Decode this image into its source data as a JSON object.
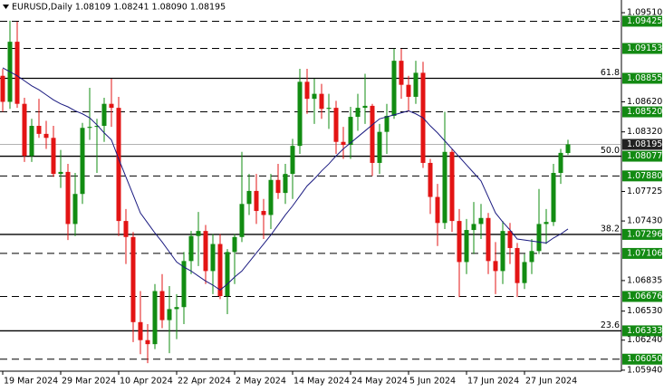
{
  "chart_data": {
    "type": "candlestick",
    "title": "EURUSD,Daily  1.08109 1.08241 1.08090 1.08195",
    "categories": [
      "19 Mar 2024",
      null,
      null,
      null,
      null,
      null,
      null,
      null,
      "29 Mar 2024",
      null,
      null,
      null,
      null,
      null,
      null,
      null,
      "10 Apr 2024",
      null,
      null,
      null,
      null,
      null,
      null,
      null,
      "22 Apr 2024",
      null,
      null,
      null,
      null,
      null,
      null,
      null,
      "2 May 2024",
      null,
      null,
      null,
      null,
      null,
      null,
      null,
      "14 May 2024",
      null,
      null,
      null,
      null,
      null,
      null,
      null,
      "24 May 2024",
      null,
      null,
      null,
      null,
      null,
      null,
      null,
      "5 Jun 2024",
      null,
      null,
      null,
      null,
      null,
      null,
      null,
      "17 Jun 2024",
      null,
      null,
      null,
      null,
      null,
      null,
      null,
      "27 Jun 2024",
      null,
      null,
      null,
      null,
      null,
      null
    ],
    "open": [
      1.0888,
      1.0862,
      1.0922,
      1.086,
      1.0808,
      1.0838,
      1.083,
      1.0826,
      1.079,
      1.0792,
      1.074,
      1.077,
      1.0836,
      1.0837,
      1.0838,
      1.086,
      1.0856,
      1.0743,
      1.0727,
      1.0642,
      1.0624,
      1.062,
      1.0673,
      1.0644,
      1.0655,
      1.0657,
      1.0703,
      1.0728,
      1.0733,
      1.0693,
      1.072,
      1.0668,
      1.0712,
      1.0727,
      1.076,
      1.0773,
      1.0753,
      1.0749,
      1.0784,
      1.0771,
      1.079,
      1.0818,
      1.0882,
      1.0865,
      1.087,
      1.0855,
      1.0856,
      1.0822,
      1.0819,
      1.0847,
      1.0856,
      1.0858,
      1.0801,
      1.0832,
      1.0848,
      1.0903,
      1.0879,
      1.0867,
      1.0891,
      1.0801,
      1.0767,
      1.0741,
      1.0812,
      1.0743,
      1.0702,
      1.0734,
      1.074,
      1.0746,
      1.0703,
      1.0693,
      1.0733,
      1.0716,
      1.0681,
      1.0702,
      1.0713,
      1.074,
      1.0742,
      1.0791,
      1.08109
    ],
    "high": [
      1.0895,
      1.0943,
      1.0942,
      1.0866,
      1.0845,
      1.0865,
      1.0843,
      1.0838,
      1.0814,
      1.08,
      1.0791,
      1.0841,
      1.0876,
      1.0845,
      1.0866,
      1.0885,
      1.0867,
      1.0755,
      1.0732,
      1.0673,
      1.064,
      1.068,
      1.069,
      1.0678,
      1.067,
      1.0712,
      1.0733,
      1.0752,
      1.0739,
      1.073,
      1.073,
      1.0715,
      1.073,
      1.0812,
      1.079,
      1.079,
      1.0765,
      1.079,
      1.08,
      1.08,
      1.0825,
      1.0895,
      1.0895,
      1.0885,
      1.088,
      1.087,
      1.0863,
      1.0837,
      1.0857,
      1.087,
      1.089,
      1.086,
      1.084,
      1.086,
      1.0915,
      1.0915,
      1.0888,
      1.0903,
      1.0902,
      1.0805,
      1.078,
      1.0852,
      1.0815,
      1.0755,
      1.0745,
      1.0762,
      1.076,
      1.0751,
      1.0722,
      1.0743,
      1.0741,
      1.0721,
      1.071,
      1.0725,
      1.0775,
      1.0755,
      1.08,
      1.0815,
      1.08241
    ],
    "low": [
      1.0852,
      1.0855,
      1.0856,
      1.0802,
      1.0802,
      1.0826,
      1.0815,
      1.0787,
      1.0776,
      1.0724,
      1.0728,
      1.076,
      1.0824,
      1.0791,
      1.0822,
      1.0837,
      1.0728,
      1.07,
      1.0622,
      1.061,
      1.0601,
      1.0615,
      1.0636,
      1.0611,
      1.0625,
      1.064,
      1.069,
      1.0698,
      1.068,
      1.067,
      1.0665,
      1.065,
      1.068,
      1.0722,
      1.0749,
      1.074,
      1.0725,
      1.0735,
      1.0765,
      1.076,
      1.0765,
      1.081,
      1.085,
      1.084,
      1.0845,
      1.0835,
      1.081,
      1.0805,
      1.0805,
      1.0833,
      1.084,
      1.0788,
      1.079,
      1.081,
      1.0845,
      1.0865,
      1.0852,
      1.086,
      1.0796,
      1.075,
      1.0718,
      1.0735,
      1.0732,
      1.0667,
      1.069,
      1.071,
      1.0725,
      1.069,
      1.067,
      1.068,
      1.07,
      1.0667,
      1.0675,
      1.069,
      1.071,
      1.072,
      1.0738,
      1.078,
      1.0809
    ],
    "close": [
      1.0862,
      1.0922,
      1.086,
      1.0808,
      1.0838,
      1.083,
      1.0826,
      1.079,
      1.0792,
      1.074,
      1.077,
      1.0836,
      1.0837,
      1.0838,
      1.086,
      1.0856,
      1.0743,
      1.0727,
      1.0642,
      1.0624,
      1.062,
      1.0673,
      1.0644,
      1.0655,
      1.0657,
      1.0703,
      1.0728,
      1.0733,
      1.0693,
      1.072,
      1.0668,
      1.0712,
      1.0727,
      1.076,
      1.0773,
      1.0753,
      1.0749,
      1.0784,
      1.0771,
      1.079,
      1.0818,
      1.0882,
      1.0865,
      1.087,
      1.0855,
      1.0856,
      1.0822,
      1.0819,
      1.0847,
      1.0856,
      1.0858,
      1.0801,
      1.0832,
      1.0848,
      1.0903,
      1.0879,
      1.0867,
      1.0891,
      1.0801,
      1.0767,
      1.0741,
      1.0812,
      1.0743,
      1.0702,
      1.0734,
      1.074,
      1.0746,
      1.0703,
      1.0693,
      1.0733,
      1.0716,
      1.0681,
      1.0702,
      1.0713,
      1.074,
      1.0742,
      1.0791,
      1.0811,
      1.08195
    ],
    "ma": [
      1.0896,
      1.0892,
      1.0888,
      1.0883,
      1.0878,
      1.0874,
      1.0869,
      1.0864,
      1.086,
      1.0857,
      1.0853,
      1.085,
      1.0846,
      1.0839,
      1.0831,
      1.0824,
      1.0805,
      1.0787,
      1.0769,
      1.0751,
      1.0741,
      1.0731,
      1.0722,
      1.0712,
      1.0702,
      1.0697,
      1.0693,
      1.0688,
      1.0683,
      1.0679,
      1.0674,
      1.068,
      1.0687,
      1.0693,
      1.0702,
      1.0711,
      1.072,
      1.0729,
      1.0739,
      1.0749,
      1.0758,
      1.0768,
      1.0778,
      1.0785,
      1.0793,
      1.08,
      1.0808,
      1.0815,
      1.0821,
      1.0827,
      1.0833,
      1.0839,
      1.0845,
      1.0847,
      1.0849,
      1.0851,
      1.0853,
      1.085,
      1.0846,
      1.0838,
      1.0831,
      1.0823,
      1.0815,
      1.0807,
      1.0799,
      1.0791,
      1.0783,
      1.0767,
      1.0751,
      1.0742,
      1.0734,
      1.0725,
      1.0724,
      1.0723,
      1.0722,
      1.0721,
      1.0726,
      1.073,
      1.0735
    ],
    "up_color": "#128c12",
    "down_color": "#e31414",
    "ma_color": "#1a1a80",
    "ylim": [
      1.0593,
      1.09637
    ],
    "yticks": [
      {
        "value": 1.0951,
        "label": "1.09510"
      },
      {
        "value": 1.0862,
        "label": "1.08620"
      },
      {
        "value": 1.0832,
        "label": "1.08320"
      },
      {
        "value": 1.07725,
        "label": "1.07725"
      },
      {
        "value": 1.0743,
        "label": "1.07430"
      },
      {
        "value": 1.06835,
        "label": "1.06835"
      },
      {
        "value": 1.0653,
        "label": "1.06530"
      },
      {
        "value": 1.0624,
        "label": "1.06240"
      },
      {
        "value": 1.0594,
        "label": "1.05940"
      }
    ],
    "levels": [
      {
        "value": 1.09425,
        "label": "1.09425"
      },
      {
        "value": 1.09153,
        "label": "1.09153"
      },
      {
        "value": 1.08855,
        "label": "1.08855",
        "fib": "61.8"
      },
      {
        "value": 1.0852,
        "label": "1.08520"
      },
      {
        "value": 1.08077,
        "label": "1.08077",
        "fib": "50.0"
      },
      {
        "value": 1.0788,
        "label": "1.07880"
      },
      {
        "value": 1.07296,
        "label": "1.07296",
        "fib": "38.2"
      },
      {
        "value": 1.07106,
        "label": "1.07106"
      },
      {
        "value": 1.06676,
        "label": "1.06676"
      },
      {
        "value": 1.06333,
        "label": "1.06333",
        "fib": "23.6"
      },
      {
        "value": 1.0605,
        "label": "1.06050"
      }
    ],
    "level_color": "#138a13",
    "last": {
      "value": 1.08195,
      "label": "1.08195"
    }
  }
}
